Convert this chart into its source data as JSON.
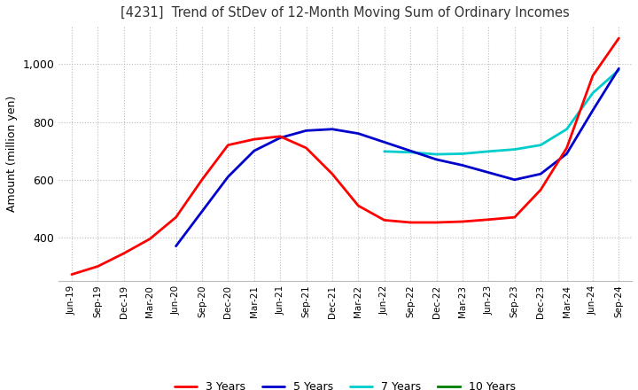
{
  "title": "[4231]  Trend of StDev of 12-Month Moving Sum of Ordinary Incomes",
  "ylabel": "Amount (million yen)",
  "ylim": [
    250,
    1130
  ],
  "yticks": [
    400,
    600,
    800,
    1000
  ],
  "grid_color": "#bbbbbb",
  "background_color": "#ffffff",
  "x_labels": [
    "Jun-19",
    "Sep-19",
    "Dec-19",
    "Mar-20",
    "Jun-20",
    "Sep-20",
    "Dec-20",
    "Mar-21",
    "Jun-21",
    "Sep-21",
    "Dec-21",
    "Mar-22",
    "Jun-22",
    "Sep-22",
    "Dec-22",
    "Mar-23",
    "Jun-23",
    "Sep-23",
    "Dec-23",
    "Mar-24",
    "Jun-24",
    "Sep-24"
  ],
  "series": {
    "3 Years": {
      "color": "#ff0000",
      "values": [
        272,
        300,
        345,
        395,
        470,
        600,
        720,
        740,
        750,
        710,
        620,
        510,
        460,
        452,
        452,
        455,
        462,
        470,
        565,
        710,
        960,
        1090
      ]
    },
    "5 Years": {
      "color": "#0000cc",
      "values": [
        null,
        null,
        null,
        null,
        370,
        490,
        610,
        700,
        745,
        770,
        775,
        760,
        730,
        700,
        670,
        650,
        625,
        600,
        620,
        690,
        840,
        985
      ]
    },
    "7 Years": {
      "color": "#00cccc",
      "values": [
        null,
        null,
        null,
        null,
        null,
        null,
        null,
        null,
        null,
        null,
        null,
        null,
        698,
        695,
        688,
        690,
        698,
        705,
        720,
        775,
        900,
        980
      ]
    },
    "10 Years": {
      "color": "#008000",
      "values": [
        null,
        null,
        null,
        null,
        null,
        null,
        null,
        null,
        null,
        null,
        null,
        null,
        null,
        null,
        null,
        null,
        null,
        null,
        null,
        null,
        null,
        null
      ]
    }
  },
  "series_order": [
    "10 Years",
    "7 Years",
    "5 Years",
    "3 Years"
  ],
  "legend_order": [
    "3 Years",
    "5 Years",
    "7 Years",
    "10 Years"
  ]
}
